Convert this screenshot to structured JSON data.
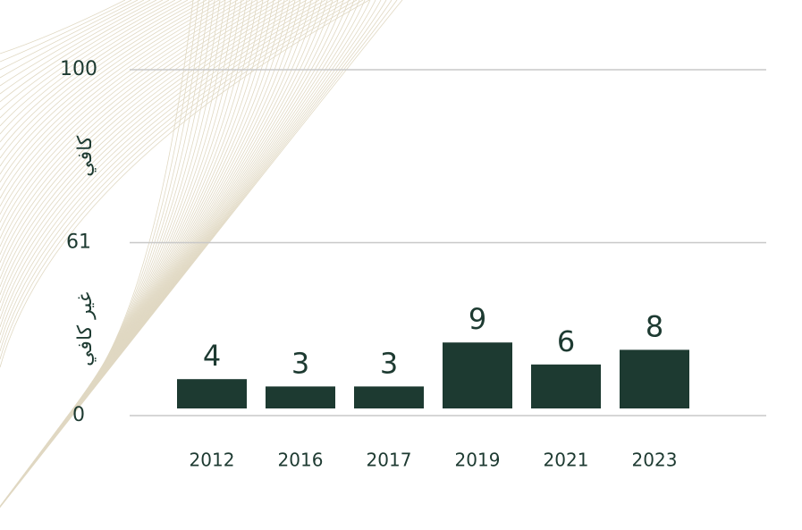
{
  "chart_data": {
    "type": "bar",
    "categories": [
      "2012",
      "2016",
      "2017",
      "2019",
      "2021",
      "2023"
    ],
    "values": [
      4,
      3,
      3,
      9,
      6,
      8
    ],
    "color": "#1d3a31",
    "yticks": [
      0,
      61,
      100
    ],
    "y_band_labels": [
      "غير كافي",
      "كافي"
    ],
    "grid": true
  }
}
